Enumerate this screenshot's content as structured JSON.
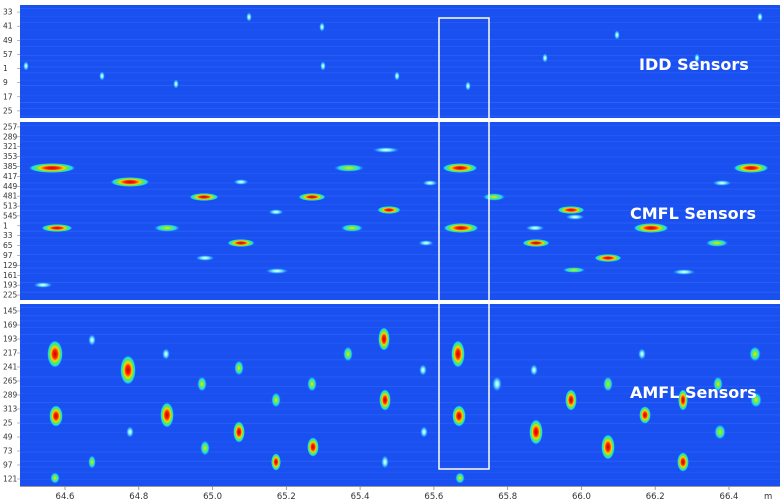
{
  "colors": {
    "background": "#1a4ff0",
    "band_light": "#3d78ff",
    "separator": "#ffffff",
    "highlight_box": "#ffffff",
    "axis_text": "#333333"
  },
  "panels": [
    {
      "label": "IDD Sensors",
      "ticks": [
        "33",
        "41",
        "49",
        "57",
        "1",
        "9",
        "17",
        "25"
      ]
    },
    {
      "label": "CMFL Sensors",
      "ticks": [
        "257",
        "289",
        "321",
        "353",
        "385",
        "417",
        "449",
        "481",
        "513",
        "545",
        "1",
        "33",
        "65",
        "97",
        "129",
        "161",
        "193",
        "225"
      ]
    },
    {
      "label": "AMFL Sensors",
      "ticks": [
        "145",
        "169",
        "193",
        "217",
        "241",
        "265",
        "289",
        "313",
        "25",
        "49",
        "73",
        "97",
        "121"
      ]
    }
  ],
  "x_axis": {
    "unit": "m",
    "ticks": [
      "64.6",
      "64.8",
      "65.0",
      "65.2",
      "65.4",
      "65.6",
      "65.8",
      "66.0",
      "66.2",
      "66.4"
    ]
  }
}
